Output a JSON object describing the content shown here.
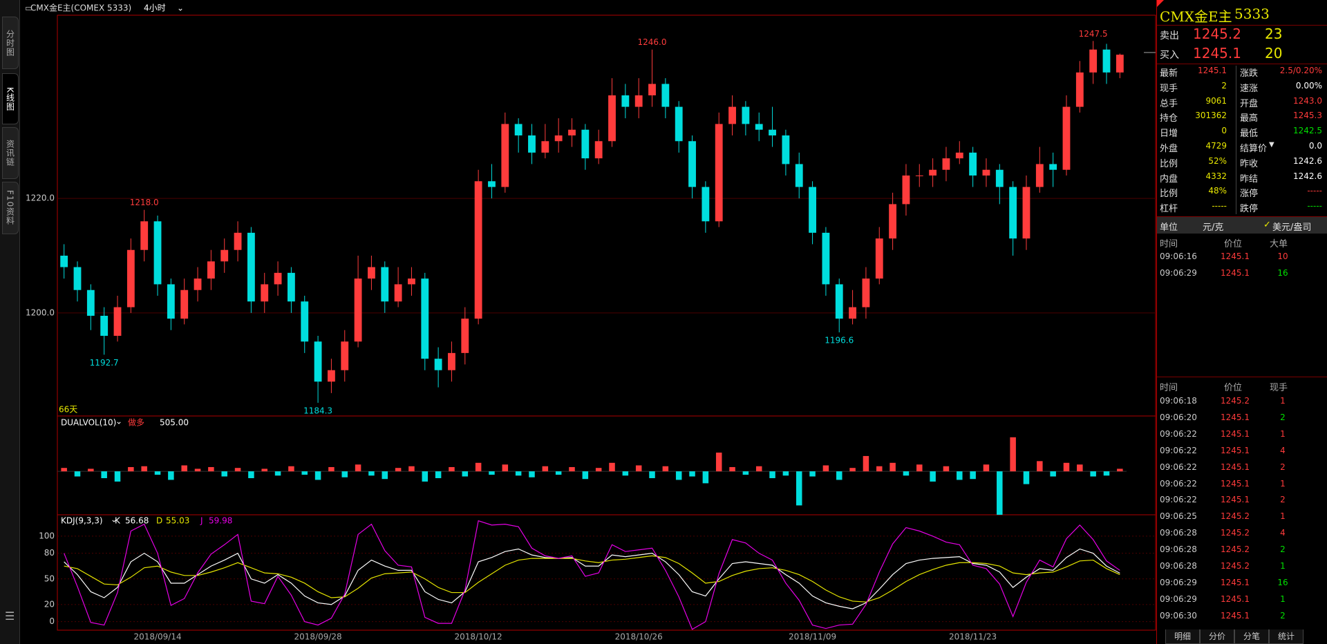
{
  "top_bar": {
    "symbol": "CMX金E主(COMEX 5333)",
    "period": "4小时"
  },
  "side_tabs": [
    "分时图",
    "K线图",
    "资讯链",
    "F10资料"
  ],
  "chart_data": [
    {
      "type": "candlestick",
      "period_label": "66天",
      "categories": [
        null,
        null,
        null,
        null,
        null,
        null,
        null,
        "2018/09/14",
        null,
        null,
        null,
        null,
        null,
        null,
        null,
        null,
        null,
        null,
        null,
        "2018/09/28",
        null,
        null,
        null,
        null,
        null,
        null,
        null,
        null,
        null,
        null,
        null,
        "2018/10/12",
        null,
        null,
        null,
        null,
        null,
        null,
        null,
        null,
        null,
        null,
        null,
        "2018/10/26",
        null,
        null,
        null,
        null,
        null,
        null,
        null,
        null,
        null,
        null,
        null,
        null,
        "2018/11/09",
        null,
        null,
        null,
        null,
        null,
        null,
        null,
        null,
        null,
        null,
        null,
        "2018/11/23",
        null,
        null,
        null,
        null,
        null,
        null,
        null,
        null,
        null,
        null,
        null
      ],
      "open": [
        1210,
        1208,
        1204,
        1199.5,
        1196,
        1201,
        1211,
        1216,
        1205,
        1199,
        1204,
        1206,
        1209,
        1211,
        1214,
        1202,
        1205,
        1207,
        1202,
        1195,
        1188,
        1190,
        1195,
        1206,
        1208,
        1202,
        1205,
        1206,
        1192,
        1190,
        1193,
        1199,
        1223,
        1222,
        1233,
        1231,
        1228,
        1230,
        1231,
        1232,
        1227,
        1230,
        1238,
        1236,
        1238,
        1240,
        1236,
        1230,
        1222,
        1216,
        1233,
        1236,
        1233,
        1232,
        1231,
        1226,
        1222,
        1214,
        1205,
        1199,
        1201,
        1206,
        1213,
        1219,
        1224,
        1224,
        1225,
        1227,
        1228,
        1224,
        1225,
        1222,
        1213,
        1222,
        1226,
        1225,
        1236,
        1242,
        1246,
        1242
      ],
      "high": [
        1212,
        1209,
        1205,
        1201,
        1203,
        1213,
        1218,
        1217,
        1206,
        1206,
        1208,
        1211,
        1213,
        1216,
        1215,
        1207,
        1209,
        1208,
        1203,
        1196,
        1192,
        1197,
        1210,
        1210,
        1209,
        1208,
        1208,
        1207,
        1194,
        1195,
        1201,
        1225,
        1226,
        1235,
        1234,
        1233,
        1233,
        1234,
        1234,
        1233,
        1232,
        1241,
        1240,
        1241,
        1246,
        1241,
        1237,
        1231,
        1223,
        1235,
        1238,
        1237,
        1235,
        1236,
        1232,
        1228,
        1223,
        1215,
        1206,
        1204,
        1208,
        1215,
        1221,
        1226,
        1226,
        1227,
        1229,
        1230,
        1229,
        1227,
        1226,
        1223,
        1224,
        1229,
        1228,
        1238,
        1244,
        1247.5,
        1247,
        1245.3
      ],
      "low": [
        1206,
        1202,
        1197,
        1192.7,
        1195,
        1200,
        1209,
        1203,
        1197,
        1198,
        1202,
        1204,
        1207,
        1209,
        1200,
        1200,
        1203,
        1200,
        1193,
        1184.3,
        1186,
        1188,
        1194,
        1204,
        1200,
        1201,
        1203,
        1190,
        1187,
        1188,
        1191,
        1198,
        1220,
        1221,
        1228,
        1226,
        1227,
        1228,
        1229,
        1225,
        1226,
        1229,
        1234,
        1234,
        1236,
        1234,
        1228,
        1220,
        1214,
        1215,
        1231,
        1231,
        1230,
        1229,
        1224,
        1220,
        1212,
        1203,
        1196.6,
        1198,
        1199,
        1205,
        1211,
        1217,
        1222,
        1222,
        1223,
        1226,
        1222,
        1222,
        1219,
        1210,
        1211,
        1221,
        1222,
        1224,
        1235,
        1240,
        1240,
        1241
      ],
      "close": [
        1208,
        1204,
        1199.5,
        1196,
        1201,
        1211,
        1216,
        1205,
        1199,
        1204,
        1206,
        1209,
        1211,
        1214,
        1202,
        1205,
        1207,
        1202,
        1195,
        1188,
        1190,
        1195,
        1206,
        1208,
        1202,
        1205,
        1206,
        1192,
        1190,
        1193,
        1199,
        1223,
        1222,
        1233,
        1231,
        1228,
        1230,
        1231,
        1232,
        1227,
        1230,
        1238,
        1236,
        1238,
        1240,
        1236,
        1230,
        1222,
        1216,
        1233,
        1236,
        1233,
        1232,
        1231,
        1226,
        1222,
        1214,
        1205,
        1199,
        1201,
        1206,
        1213,
        1219,
        1224,
        1224,
        1225,
        1227,
        1228,
        1224,
        1225,
        1222,
        1213,
        1222,
        1226,
        1225,
        1236,
        1242,
        1246,
        1242,
        1245.1
      ],
      "ylim": [
        1182,
        1252
      ],
      "yticks": [
        {
          "value": 1200,
          "label": "1200.0"
        },
        {
          "value": 1220,
          "label": "1220.0"
        }
      ],
      "up_color": "#ff3c3c",
      "down_color": "#00dede",
      "annotations": [
        "1218.0",
        "1192.7",
        "1184.3",
        "1246.0",
        "1196.6",
        "1247.5"
      ]
    },
    {
      "type": "bar",
      "title": "DUALVOL(10)",
      "signal": "做多",
      "value_text": "505.00",
      "values": [
        4,
        -6,
        3,
        -8,
        -12,
        5,
        6,
        -4,
        -10,
        7,
        3,
        5,
        -6,
        4,
        -8,
        3,
        -5,
        6,
        -4,
        -10,
        5,
        -7,
        8,
        -5,
        -9,
        4,
        6,
        -12,
        -8,
        5,
        -6,
        10,
        -4,
        8,
        -5,
        -7,
        6,
        -4,
        5,
        -9,
        4,
        10,
        -5,
        7,
        -8,
        6,
        -10,
        -6,
        -14,
        22,
        5,
        -4,
        6,
        -8,
        -5,
        -40,
        -6,
        7,
        -10,
        4,
        18,
        6,
        10,
        -5,
        8,
        -12,
        6,
        -10,
        -9,
        8,
        -51,
        40,
        -15,
        12,
        -6,
        10,
        8,
        -6,
        -5,
        3
      ],
      "ylim": [
        -51,
        65
      ],
      "up_color": "#ff3c3c",
      "down_color": "#00dede"
    },
    {
      "type": "line",
      "title": "KDJ(9,3,3)",
      "ylim": [
        -10,
        125
      ],
      "yticks": [
        0,
        20,
        50,
        80,
        100
      ],
      "series": [
        {
          "name": "K",
          "color": "#ffffff",
          "values": [
            70,
            55,
            35,
            28,
            40,
            70,
            80,
            70,
            45,
            45,
            55,
            65,
            72,
            80,
            50,
            45,
            55,
            45,
            30,
            22,
            20,
            30,
            60,
            72,
            65,
            60,
            60,
            35,
            26,
            22,
            35,
            70,
            75,
            82,
            85,
            78,
            75,
            74,
            75,
            65,
            65,
            78,
            76,
            78,
            80,
            70,
            55,
            35,
            30,
            50,
            68,
            70,
            68,
            66,
            55,
            45,
            30,
            22,
            18,
            15,
            22,
            38,
            55,
            68,
            72,
            74,
            75,
            76,
            68,
            66,
            58,
            40,
            52,
            62,
            60,
            75,
            85,
            80,
            65,
            56.68
          ]
        },
        {
          "name": "D",
          "color": "#e6e600",
          "values": [
            65,
            62,
            53,
            44,
            43,
            52,
            63,
            65,
            58,
            54,
            54,
            58,
            63,
            69,
            63,
            57,
            56,
            52,
            45,
            35,
            28,
            29,
            39,
            51,
            56,
            57,
            58,
            50,
            40,
            34,
            34,
            46,
            56,
            66,
            72,
            74,
            74,
            74,
            74,
            71,
            69,
            72,
            73,
            75,
            77,
            75,
            68,
            57,
            45,
            47,
            54,
            59,
            62,
            63,
            60,
            55,
            47,
            37,
            29,
            24,
            23,
            28,
            37,
            47,
            55,
            61,
            66,
            69,
            69,
            68,
            65,
            57,
            55,
            57,
            58,
            64,
            71,
            72,
            62,
            55.03
          ]
        },
        {
          "name": "J",
          "color": "#e600e6",
          "values": [
            80,
            41,
            -1,
            -4,
            34,
            106,
            114,
            80,
            19,
            27,
            57,
            79,
            90,
            102,
            24,
            21,
            53,
            31,
            0,
            -4,
            4,
            32,
            102,
            114,
            83,
            66,
            64,
            5,
            -2,
            -2,
            37,
            118,
            113,
            114,
            111,
            86,
            77,
            74,
            77,
            53,
            57,
            90,
            82,
            84,
            86,
            60,
            29,
            -9,
            0,
            56,
            96,
            92,
            80,
            72,
            45,
            25,
            -4,
            -8,
            -4,
            -3,
            20,
            58,
            91,
            110,
            106,
            100,
            93,
            90,
            66,
            62,
            44,
            6,
            46,
            72,
            64,
            97,
            113,
            96,
            71,
            59.98
          ]
        }
      ]
    }
  ],
  "quote": {
    "name": "CMX金E主",
    "code": "5333",
    "ask": {
      "label": "卖出",
      "price": "1245.2",
      "size": "23"
    },
    "bid": {
      "label": "买入",
      "price": "1245.1",
      "size": "20"
    },
    "rows": [
      [
        "最新",
        "1245.1",
        "涨跌",
        "2.5/0.20%"
      ],
      [
        "现手",
        "2",
        "速涨",
        "0.00%"
      ],
      [
        "总手",
        "9061",
        "开盘",
        "1243.0"
      ],
      [
        "持仓",
        "301362",
        "最高",
        "1245.3"
      ],
      [
        "日增",
        "0",
        "最低",
        "1242.5"
      ],
      [
        "外盘",
        "4729",
        "结算价",
        "0.0"
      ],
      [
        "比例",
        "52%",
        "昨收",
        "1242.6"
      ],
      [
        "内盘",
        "4332",
        "昨结",
        "1242.6"
      ],
      [
        "比例",
        "48%",
        "涨停",
        "-----"
      ],
      [
        "杠杆",
        "-----",
        "跌停",
        "-----"
      ]
    ],
    "unit": {
      "label": "单位",
      "value": "元/克",
      "alt": "美元/盎司"
    },
    "big_trades": {
      "headers": [
        "时间",
        "价位",
        "大单"
      ],
      "rows": [
        [
          "09:06:16",
          "1245.1",
          "10"
        ],
        [
          "09:06:29",
          "1245.1",
          "16"
        ]
      ]
    },
    "ticks": {
      "headers": [
        "时间",
        "价位",
        "现手"
      ],
      "rows": [
        [
          "09:06:18",
          "1245.2",
          "1"
        ],
        [
          "09:06:20",
          "1245.1",
          "2"
        ],
        [
          "09:06:22",
          "1245.1",
          "1"
        ],
        [
          "09:06:22",
          "1245.1",
          "4"
        ],
        [
          "09:06:22",
          "1245.1",
          "2"
        ],
        [
          "09:06:22",
          "1245.1",
          "1"
        ],
        [
          "09:06:22",
          "1245.1",
          "2"
        ],
        [
          "09:06:25",
          "1245.2",
          "1"
        ],
        [
          "09:06:28",
          "1245.2",
          "4"
        ],
        [
          "09:06:28",
          "1245.2",
          "2"
        ],
        [
          "09:06:28",
          "1245.2",
          "1"
        ],
        [
          "09:06:29",
          "1245.1",
          "16"
        ],
        [
          "09:06:29",
          "1245.1",
          "1"
        ],
        [
          "09:06:30",
          "1245.1",
          "2"
        ]
      ]
    },
    "tabs": [
      "明细",
      "分价",
      "分笔",
      "统计"
    ]
  }
}
